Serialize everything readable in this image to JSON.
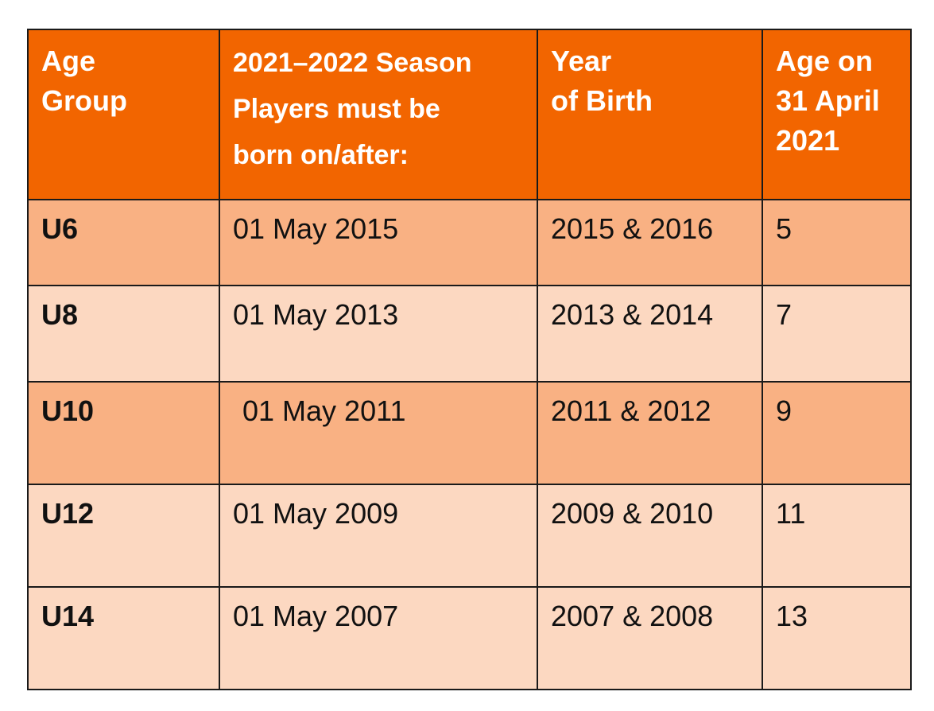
{
  "table": {
    "headers": [
      {
        "lines": [
          "Age",
          "Group"
        ]
      },
      {
        "lines": [
          "2021–2022 Season",
          "Players must be",
          "born on/after:"
        ]
      },
      {
        "lines": [
          "Year",
          "of Birth"
        ]
      },
      {
        "lines": [
          "Age on",
          "31 April",
          "2021"
        ]
      }
    ],
    "rows": [
      {
        "group": "U6",
        "born_after": "01 May 2015",
        "year_of_birth": "2015 & 2016",
        "age": "5"
      },
      {
        "group": "U8",
        "born_after": "01 May 2013",
        "year_of_birth": "2013 & 2014",
        "age": "7"
      },
      {
        "group": "U10",
        "born_after": "01 May 2011",
        "year_of_birth": "2011 & 2012",
        "age": "9"
      },
      {
        "group": "U12",
        "born_after": "01 May 2009",
        "year_of_birth": "2009 & 2010",
        "age": "11"
      },
      {
        "group": "U14",
        "born_after": "01 May 2007",
        "year_of_birth": "2007 & 2008",
        "age": "13"
      }
    ]
  },
  "colors": {
    "header": "#f26500",
    "row_dark": "#f9b183",
    "row_light": "#fcd8c1"
  }
}
